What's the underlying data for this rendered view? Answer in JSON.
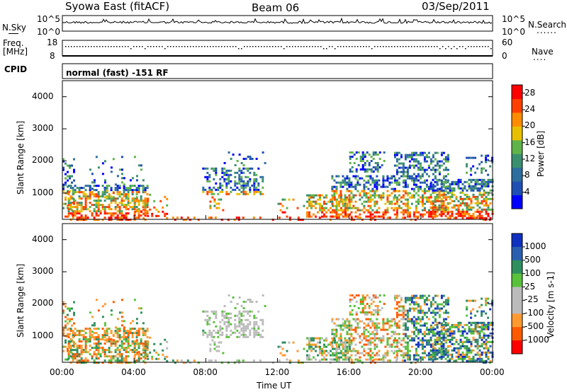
{
  "header": {
    "title": "Syowa East (fitACF)",
    "beam": "Beam 06",
    "date": "03/Sep/2011"
  },
  "top_panels": {
    "nsky_label": "N.Sky",
    "nsky_ticks": [
      "10^5",
      "10^0"
    ],
    "nsearch_label": "N.Search",
    "nsearch_ticks": [
      "10^5",
      "10^0"
    ],
    "freq_label_1": "Freq.",
    "freq_label_2": "[MHz]",
    "freq_ticks": [
      "18",
      "8"
    ],
    "nave_label": "Nave",
    "nave_ticks": [
      "60",
      "0"
    ],
    "cpid_label": "CPID",
    "mode_text": "normal (fast) -151 RF"
  },
  "colors": {
    "power_scale": [
      "#0000ff",
      "#1f4fb4",
      "#2e6e9e",
      "#3a8f6e",
      "#60b34a",
      "#e8c000",
      "#ff8c00",
      "#ff4000",
      "#ff0000"
    ],
    "velocity_scale": [
      "#ff0000",
      "#ff5a00",
      "#ff9a30",
      "#bbbbbb",
      "#bbbbbb",
      "#59c23a",
      "#2e8f5e",
      "#2a5fb0",
      "#1030c0"
    ]
  },
  "chart_data": [
    {
      "type": "heatmap",
      "name": "power",
      "ylabel": "Slant Range [km]",
      "ylim": [
        180,
        4500
      ],
      "yticks": [
        "1000",
        "2000",
        "3000",
        "4000"
      ],
      "ytick_values": [
        1000,
        2000,
        3000,
        4000
      ],
      "xlim_hours": [
        0,
        24
      ],
      "colorbar_label": "Power [dB]",
      "colorbar_ticks": [
        "4",
        "8",
        "12",
        "16",
        "20",
        "24",
        "28"
      ],
      "colorbar_tick_values": [
        4,
        8,
        12,
        16,
        20,
        24,
        28
      ],
      "colorbar_range": [
        0,
        30
      ]
    },
    {
      "type": "heatmap",
      "name": "velocity",
      "ylabel": "Slant Range [km]",
      "ylim": [
        180,
        4500
      ],
      "yticks": [
        "1000",
        "2000",
        "3000",
        "4000"
      ],
      "ytick_values": [
        1000,
        2000,
        3000,
        4000
      ],
      "xlim_hours": [
        0,
        24
      ],
      "xticks": [
        "00:00",
        "04:00",
        "08:00",
        "12:00",
        "16:00",
        "20:00",
        "00:00"
      ],
      "xtick_values": [
        0,
        4,
        8,
        12,
        16,
        20,
        24
      ],
      "xlabel": "Time UT",
      "colorbar_label": "Velocity [m s-1]",
      "colorbar_ticks": [
        "1000",
        "500",
        "100",
        "25",
        "-25",
        "-100",
        "-500",
        "-1000"
      ]
    }
  ]
}
